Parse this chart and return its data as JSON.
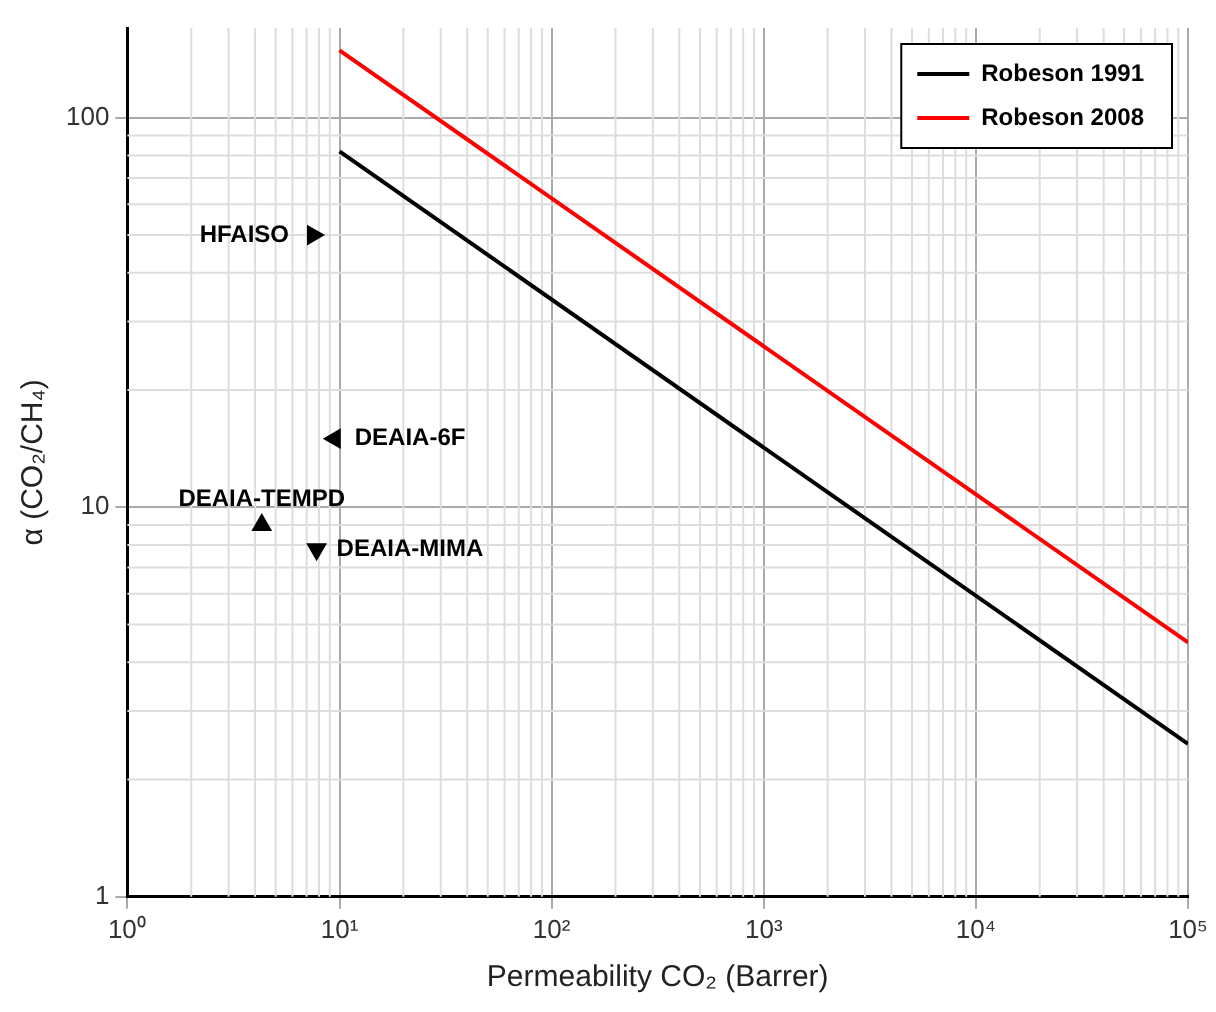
{
  "chart_data": {
    "type": "scatter",
    "xlabel": "Permeability CO₂ (Barrer)",
    "ylabel": "α (CO₂/CH₄)",
    "log": "xy",
    "grid": true,
    "legend": "top right",
    "xlim": [
      1,
      100000
    ],
    "xticks": [
      {
        "value": 1,
        "label": "10⁰"
      },
      {
        "value": 10,
        "label": "10¹"
      },
      {
        "value": 100,
        "label": "10²"
      },
      {
        "value": 1000,
        "label": "10³"
      },
      {
        "value": 10000,
        "label": "10⁴"
      },
      {
        "value": 100000,
        "label": "10⁵"
      }
    ],
    "ylim": [
      1,
      170
    ],
    "yticks": [
      1,
      10,
      100
    ],
    "series": [
      {
        "name": "Robeson 1991",
        "type": "line",
        "color": "#000000",
        "x": [
          10,
          100000
        ],
        "values": [
          82,
          2.47
        ],
        "marker": "none"
      },
      {
        "name": "Robeson 2008",
        "type": "line",
        "color": "#ff0000",
        "x": [
          10,
          100000
        ],
        "values": [
          149,
          4.5
        ],
        "marker": "none"
      },
      {
        "name": "HFAISO",
        "type": "scatter",
        "color": "#000000",
        "x": [
          7.5
        ],
        "values": [
          50
        ],
        "marker": "triangle-right"
      },
      {
        "name": "DEAIA-6F",
        "type": "scatter",
        "color": "#000000",
        "x": [
          9.5
        ],
        "values": [
          15
        ],
        "marker": "triangle-left"
      },
      {
        "name": "DEAIA-TEMPD",
        "type": "scatter",
        "color": "#000000",
        "x": [
          4.3
        ],
        "values": [
          9
        ],
        "marker": "triangle"
      },
      {
        "name": "DEAIA-MIMA",
        "type": "scatter",
        "color": "#000000",
        "x": [
          7.8
        ],
        "values": [
          7.8
        ],
        "marker": "triangle-down"
      }
    ]
  }
}
